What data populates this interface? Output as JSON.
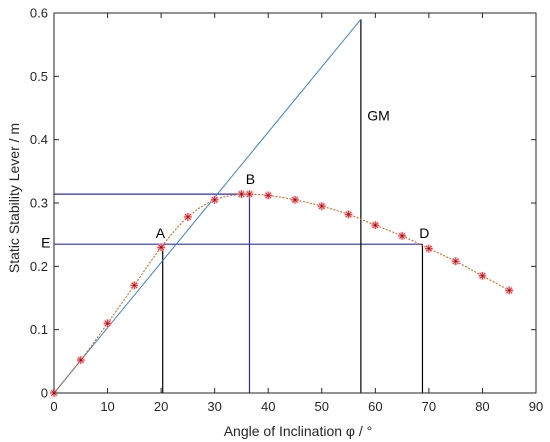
{
  "chart_data": {
    "type": "line",
    "title": "",
    "xlabel": "Angle of Inclination φ / °",
    "ylabel": "Static Stability Lever / m",
    "xlim": [
      0,
      90
    ],
    "ylim": [
      0,
      0.6
    ],
    "xticks": [
      "0",
      "10",
      "20",
      "30",
      "40",
      "50",
      "60",
      "70",
      "80",
      "90"
    ],
    "yticks": [
      "0",
      "0.1",
      "0.2",
      "0.3",
      "0.4",
      "0.5",
      "0.6"
    ],
    "grid": false,
    "series": [
      {
        "marker": "asterisk",
        "x": [
          0,
          5,
          10,
          15,
          20,
          25,
          30,
          35,
          36.5,
          40,
          45,
          50,
          55,
          60,
          65,
          70,
          75,
          80,
          85
        ],
        "y": [
          0,
          0.052,
          0.11,
          0.17,
          0.23,
          0.278,
          0.305,
          0.314,
          0.314,
          0.312,
          0.305,
          0.295,
          0.282,
          0.265,
          0.248,
          0.228,
          0.208,
          0.185,
          0.162
        ]
      }
    ],
    "gm_line": {
      "x": [
        0,
        57.3
      ],
      "y": [
        0,
        0.59
      ]
    },
    "reference_lines": [
      {
        "kind": "horizontal",
        "y": 0.314,
        "x_from": 0,
        "x_to": 36.5,
        "color": "#2b2bbf"
      },
      {
        "kind": "horizontal",
        "y": 0.235,
        "x_from": 0,
        "x_to": 68.8,
        "color": "#2b2bbf"
      },
      {
        "kind": "vertical",
        "x": 20.3,
        "y_from": 0,
        "y_to": 0.235,
        "color": "#000000"
      },
      {
        "kind": "vertical",
        "x": 36.5,
        "y_from": 0,
        "y_to": 0.314,
        "color": "#2b2bbf"
      },
      {
        "kind": "vertical",
        "x": 57.3,
        "y_from": 0,
        "y_to": 0.59,
        "color": "#000000"
      },
      {
        "kind": "vertical",
        "x": 68.8,
        "y_from": 0,
        "y_to": 0.235,
        "color": "#000000"
      }
    ],
    "annotations": [
      {
        "text": "A",
        "x": 19.0,
        "y": 0.245
      },
      {
        "text": "B",
        "x": 35.8,
        "y": 0.33
      },
      {
        "text": "D",
        "x": 68.2,
        "y": 0.245
      },
      {
        "text": "E",
        "x": -2.4,
        "y": 0.23
      },
      {
        "text": "GM",
        "x": 58.5,
        "y": 0.43
      }
    ],
    "colors": {
      "curve": "#d2691e",
      "marker": "#e03030",
      "marker_halo": "#f7b8c6",
      "gm_line": "#3c7fd1",
      "axis": "#262626"
    }
  }
}
